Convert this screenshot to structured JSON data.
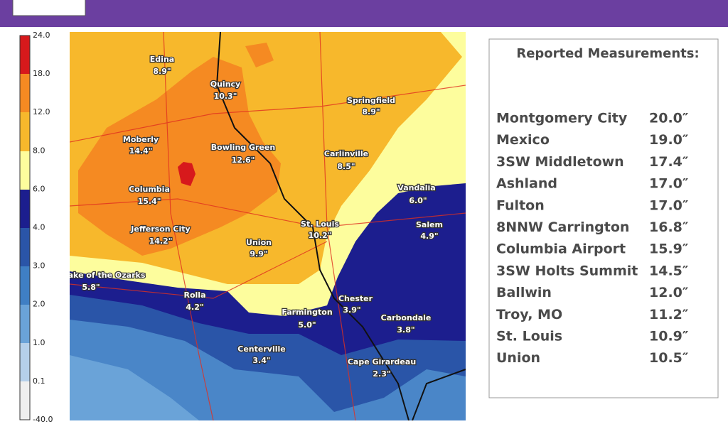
{
  "legend": {
    "ticks": [
      "24.0",
      "18.0",
      "12.0",
      "8.0",
      "6.0",
      "4.0",
      "3.0",
      "2.0",
      "1.0",
      "0.1",
      "-40.0"
    ]
  },
  "map": {
    "cities": [
      {
        "name": "Edina",
        "value": "8.9\""
      },
      {
        "name": "Quincy",
        "value": "10.3\""
      },
      {
        "name": "Springfield",
        "value": "8.9\""
      },
      {
        "name": "Moberly",
        "value": "14.4\""
      },
      {
        "name": "Bowling Green",
        "value": "12.6\""
      },
      {
        "name": "Carlinville",
        "value": "8.5\""
      },
      {
        "name": "Vandalia",
        "value": "6.0\""
      },
      {
        "name": "Columbia",
        "value": "15.4\""
      },
      {
        "name": "Salem",
        "value": "4.9\""
      },
      {
        "name": "Jefferson City",
        "value": "14.2\""
      },
      {
        "name": "St. Louis",
        "value": "10.2\""
      },
      {
        "name": "Union",
        "value": "9.9\""
      },
      {
        "name": "ake of the Ozarks",
        "value": "5.8\""
      },
      {
        "name": "Rolla",
        "value": "4.2\""
      },
      {
        "name": "Chester",
        "value": "3.9\""
      },
      {
        "name": "Farmington",
        "value": "5.0\""
      },
      {
        "name": "Carbondale",
        "value": "3.8\""
      },
      {
        "name": "Centerville",
        "value": "3.4\""
      },
      {
        "name": "Cape Girardeau",
        "value": "2.3\""
      }
    ]
  },
  "panel": {
    "title": "Reported Measurements:",
    "rows": [
      {
        "place": "Montgomery City",
        "amount": "20.0″"
      },
      {
        "place": "Mexico",
        "amount": "19.0″"
      },
      {
        "place": "3SW Middletown",
        "amount": "17.4″"
      },
      {
        "place": "Ashland",
        "amount": "17.0″"
      },
      {
        "place": "Fulton",
        "amount": "17.0″"
      },
      {
        "place": "8NNW Carrington",
        "amount": "16.8″"
      },
      {
        "place": "Columbia Airport",
        "amount": "15.9″"
      },
      {
        "place": "3SW Holts Summit",
        "amount": "14.5″"
      },
      {
        "place": "Ballwin",
        "amount": "12.0″"
      },
      {
        "place": "Troy, MO",
        "amount": "11.2″"
      },
      {
        "place": "St. Louis",
        "amount": "10.9″"
      },
      {
        "place": "Union",
        "amount": "10.5″"
      }
    ]
  }
}
